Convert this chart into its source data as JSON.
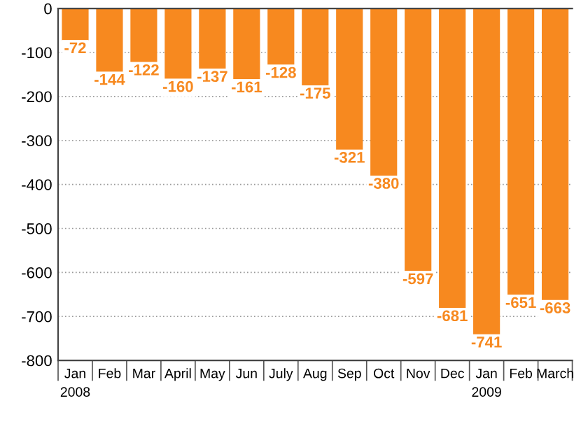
{
  "chart_data": {
    "type": "bar",
    "categories": [
      "Jan\n2008",
      "Feb",
      "Mar",
      "April",
      "May",
      "Jun",
      "July",
      "Aug",
      "Sep",
      "Oct",
      "Nov",
      "Dec",
      "Jan\n2009",
      "Feb",
      "March"
    ],
    "values": [
      -72,
      -144,
      -122,
      -160,
      -137,
      -161,
      -128,
      -175,
      -321,
      -380,
      -597,
      -681,
      -741,
      -651,
      -663
    ],
    "color": "#f7891f",
    "ylim": [
      -800,
      0
    ],
    "yticks": [
      0,
      -100,
      -200,
      -300,
      -400,
      -500,
      -600,
      -700,
      -800
    ],
    "grid": "y",
    "data_labels": true
  }
}
